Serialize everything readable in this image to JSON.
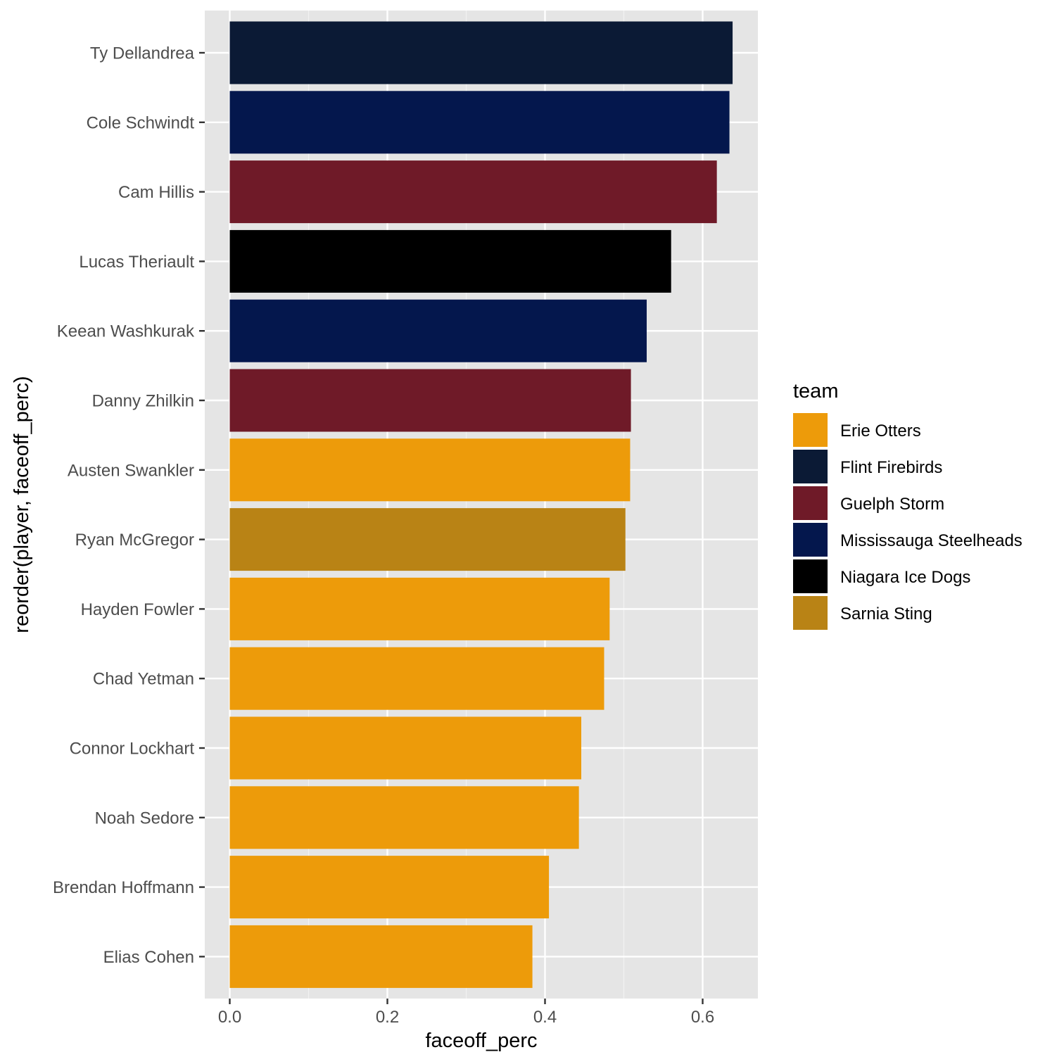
{
  "chart_data": {
    "type": "bar",
    "orientation": "horizontal",
    "xlabel": "faceoff_perc",
    "ylabel": "reorder(player, faceoff_perc)",
    "xlim": [
      -0.032,
      0.669
    ],
    "x_ticks": [
      "0.0",
      "0.2",
      "0.4",
      "0.6"
    ],
    "x_tick_values": [
      0,
      0.2,
      0.4,
      0.6
    ],
    "grid": true,
    "legend_placement": "right",
    "legend": {
      "title": "team",
      "entries": [
        {
          "name": "Erie Otters",
          "color": "#ED9B0A"
        },
        {
          "name": "Flint Firebirds",
          "color": "#0B1A35"
        },
        {
          "name": "Guelph Storm",
          "color": "#6F1A28"
        },
        {
          "name": "Mississauga Steelheads",
          "color": "#04174D"
        },
        {
          "name": "Niagara Ice Dogs",
          "color": "#000000"
        },
        {
          "name": "Sarnia Sting",
          "color": "#B98315"
        }
      ]
    },
    "categories": [
      "Ty Dellandrea",
      "Cole Schwindt",
      "Cam Hillis",
      "Lucas Theriault",
      "Keean Washkurak",
      "Danny Zhilkin",
      "Austen Swankler",
      "Ryan McGregor",
      "Hayden Fowler",
      "Chad Yetman",
      "Connor Lockhart",
      "Noah Sedore",
      "Brendan Hoffmann",
      "Elias Cohen"
    ],
    "values": [
      0.638,
      0.634,
      0.618,
      0.56,
      0.529,
      0.509,
      0.508,
      0.502,
      0.482,
      0.475,
      0.446,
      0.443,
      0.405,
      0.384
    ],
    "teams": [
      "Flint Firebirds",
      "Mississauga Steelheads",
      "Guelph Storm",
      "Niagara Ice Dogs",
      "Mississauga Steelheads",
      "Guelph Storm",
      "Erie Otters",
      "Sarnia Sting",
      "Erie Otters",
      "Erie Otters",
      "Erie Otters",
      "Erie Otters",
      "Erie Otters",
      "Erie Otters"
    ]
  },
  "colors": {
    "panel_background": "#E5E5E5",
    "grid_major": "#FFFFFF",
    "grid_minor": "#F2F2F2",
    "tick": "#333333"
  }
}
